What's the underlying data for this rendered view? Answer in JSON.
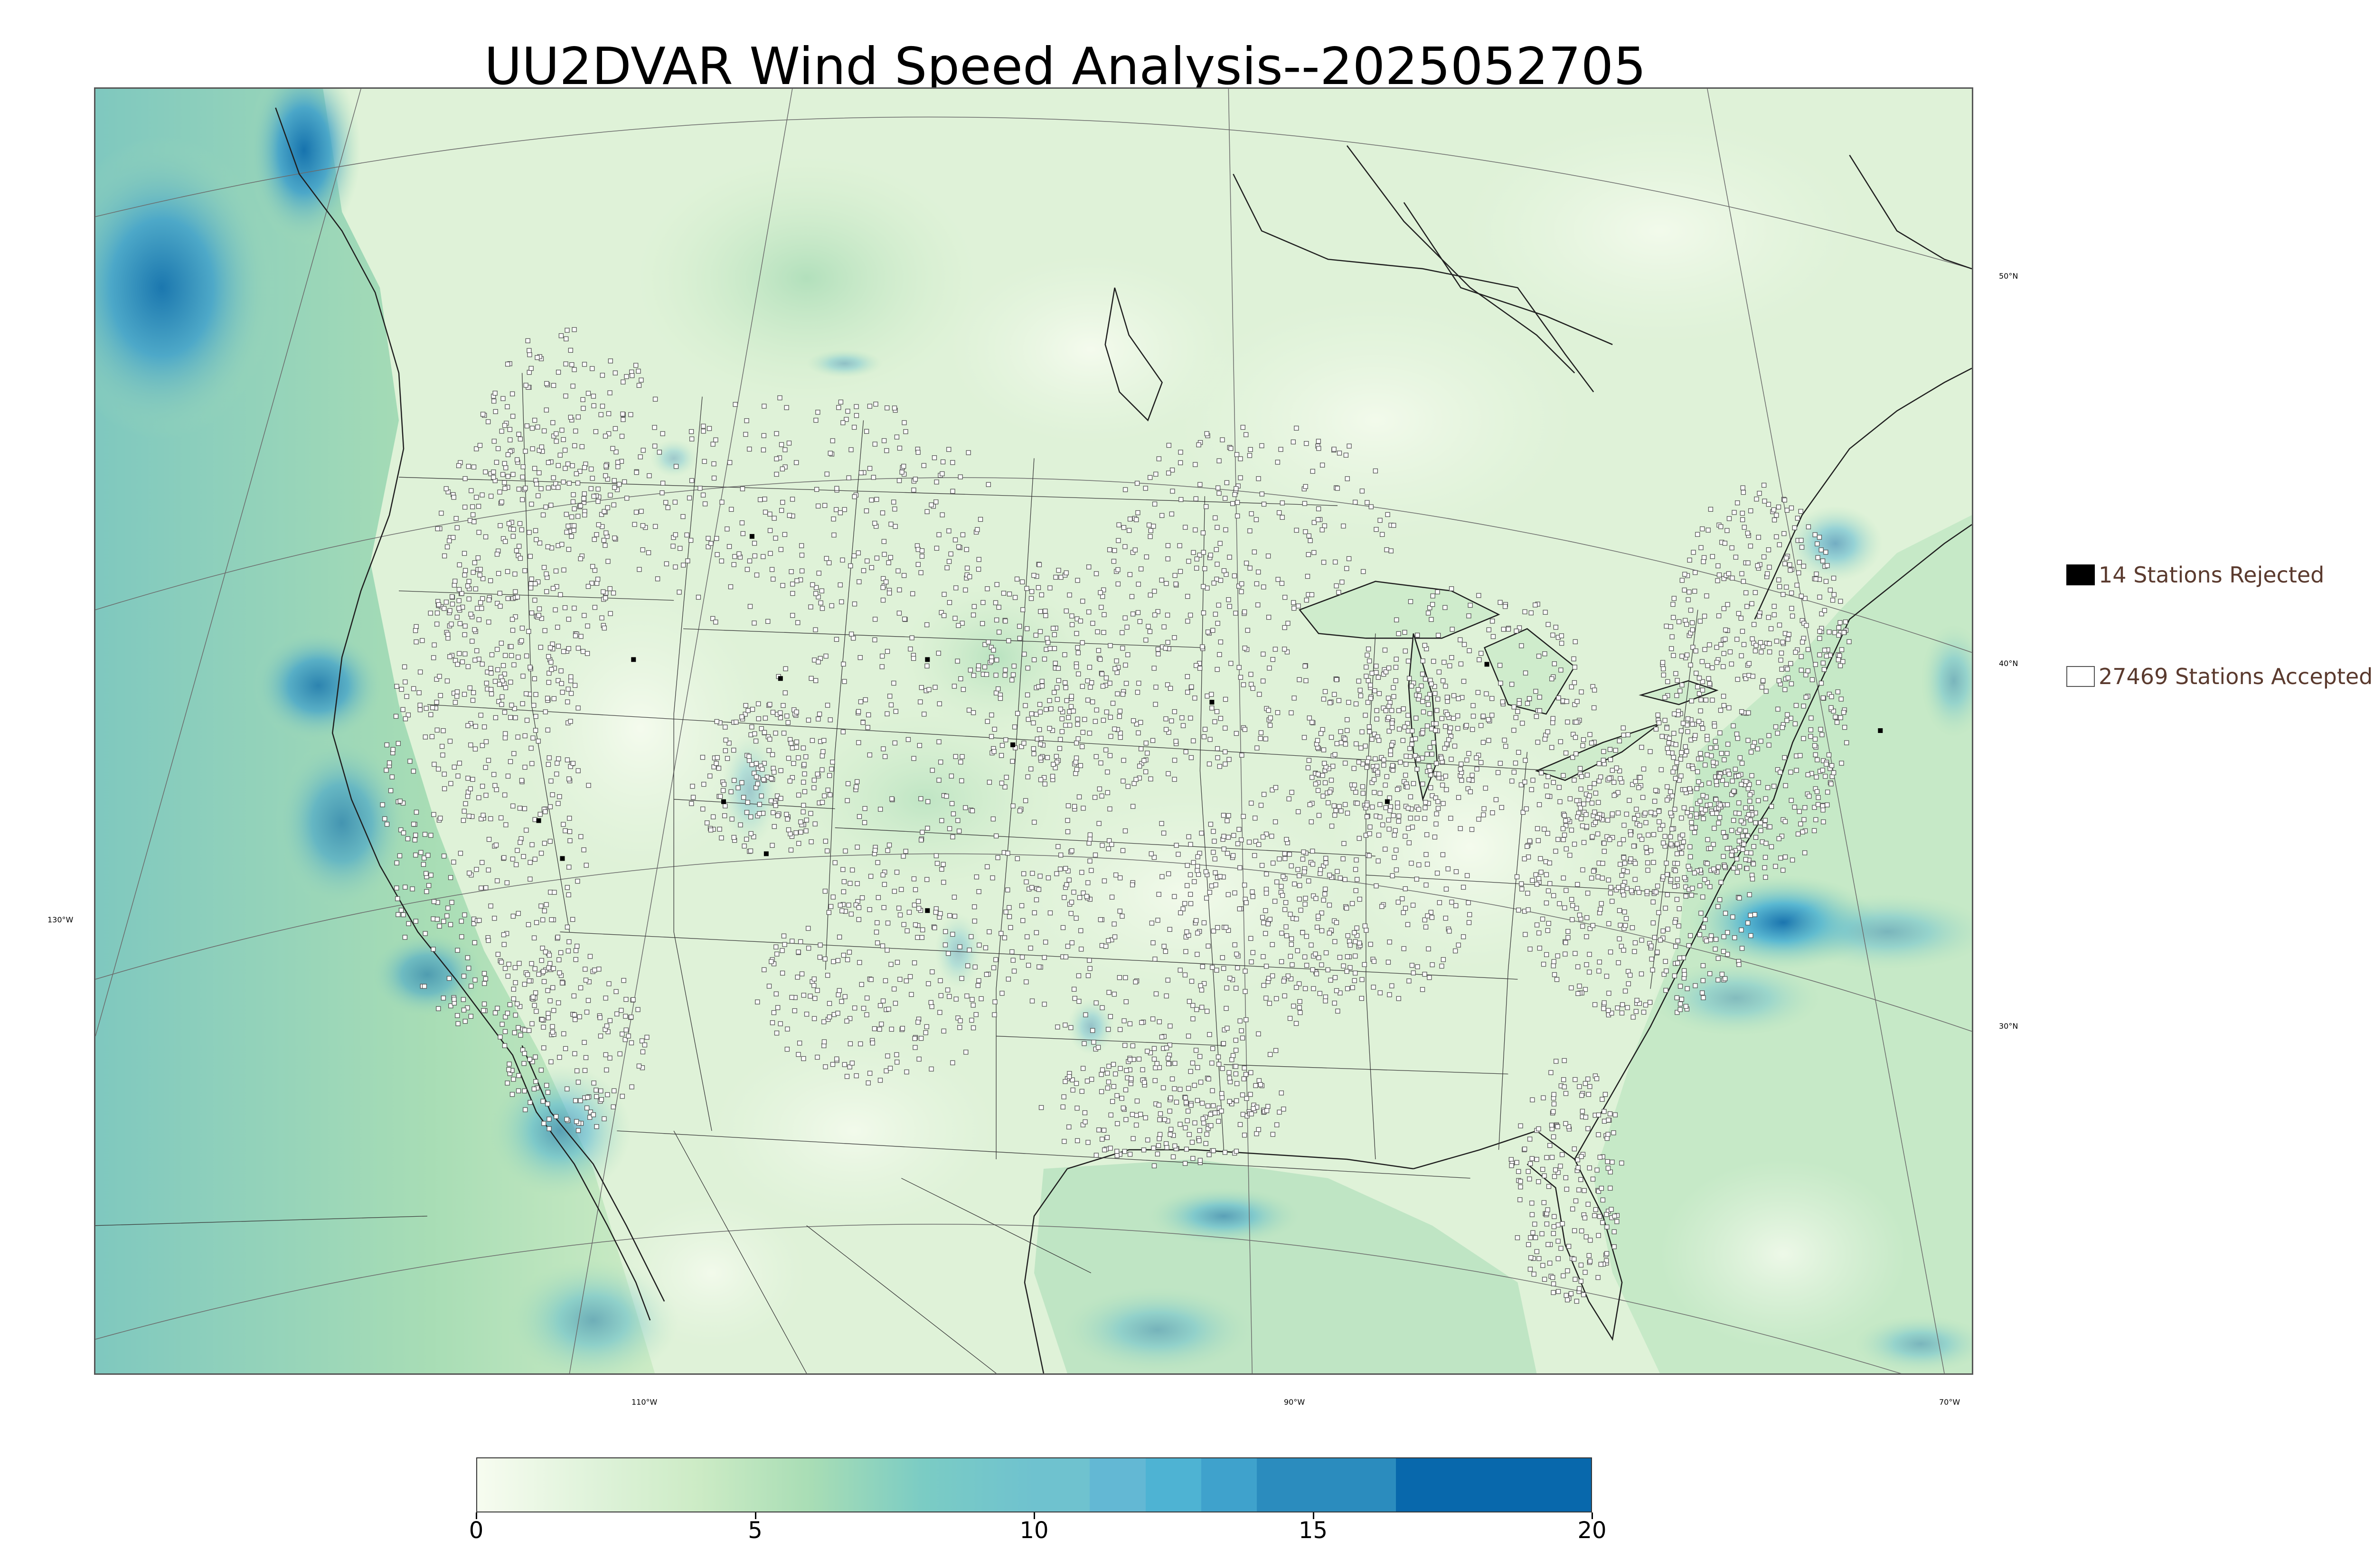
{
  "title": "UU2DVAR Wind Speed Analysis--2025052705",
  "map": {
    "latitude_labels": [
      {
        "text": "50°N"
      },
      {
        "text": "40°N"
      },
      {
        "text": "30°N"
      }
    ],
    "longitude_labels": [
      {
        "text": "130°W"
      },
      {
        "text": "110°W"
      },
      {
        "text": "90°W"
      },
      {
        "text": "70°W"
      }
    ],
    "colors": {
      "land_light": "#eaf6e4",
      "ocean_green": "#a8ddb5",
      "strong_wind": "#2b8cbe",
      "max_wind": "#0868ac",
      "border_lines": "#2a2a2a",
      "station_outline": "#555555"
    }
  },
  "legend": {
    "rejected": {
      "label": "14 Stations Rejected",
      "swatch_color": "#000000"
    },
    "accepted": {
      "label": "27469 Stations Accepted",
      "swatch_color": "#ffffff"
    }
  },
  "colorbar": {
    "min": 0,
    "max": 20,
    "tick_labels": [
      "0",
      "5",
      "10",
      "15",
      "20"
    ],
    "tick_values": [
      0,
      5,
      10,
      15,
      20
    ],
    "color_stops": [
      {
        "value": 0,
        "color": "#f7fcf0"
      },
      {
        "value": 2,
        "color": "#e0f3db"
      },
      {
        "value": 4,
        "color": "#ccebc5"
      },
      {
        "value": 6,
        "color": "#a8ddb5"
      },
      {
        "value": 8,
        "color": "#7bccc4"
      },
      {
        "value": 10,
        "color": "#6fc2cf"
      },
      {
        "value": 11,
        "color": "#63b8d4"
      },
      {
        "value": 12,
        "color": "#4eb3d3"
      },
      {
        "value": 13,
        "color": "#3fa2cc"
      },
      {
        "value": 14,
        "color": "#2b8cbe"
      },
      {
        "value": 16.5,
        "color": "#0868ac"
      },
      {
        "value": 20,
        "color": "#0868ac"
      }
    ]
  }
}
